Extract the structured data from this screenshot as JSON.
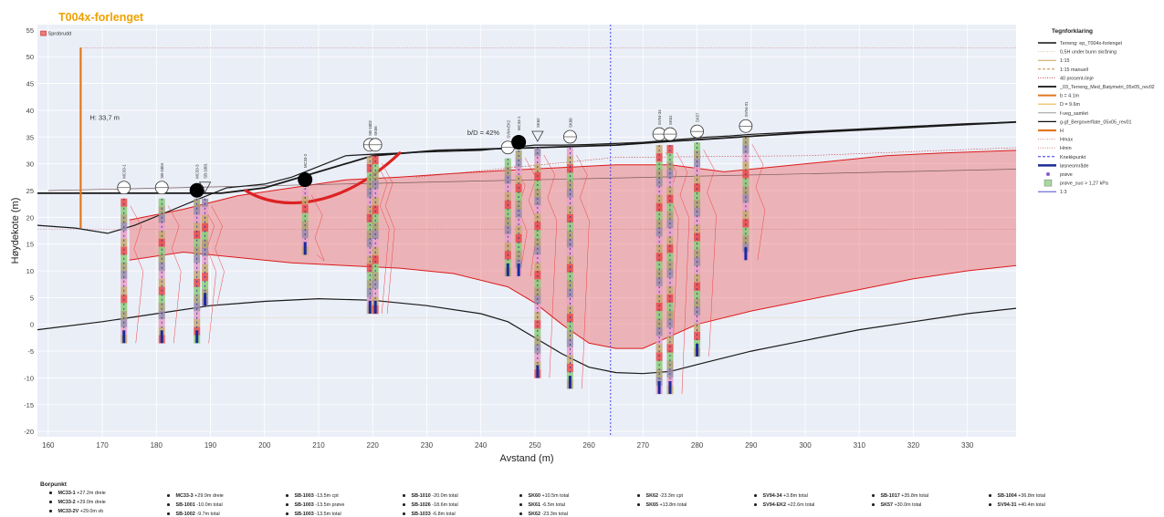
{
  "colors": {
    "title": "#f0a000",
    "plot_bg": "#eaeef7",
    "terrain": "#1a1a1a",
    "slip_fill": "#ee6a6a",
    "slip_line": "#dd1a1a",
    "orange_bar": "#e07820",
    "knekk": "#3333ee"
  },
  "chart_data": {
    "type": "line",
    "title": "T004x-forlenget",
    "tag_label": "Sprobrudd",
    "xlabel": "Avstand (m)",
    "ylabel": "Høydekote (m)",
    "xlim": [
      158,
      339
    ],
    "ylim": [
      -21,
      56
    ],
    "xticks": [
      "160",
      "170",
      "180",
      "190",
      "200",
      "210",
      "220",
      "230",
      "240",
      "250",
      "260",
      "270",
      "280",
      "290",
      "300",
      "310",
      "320",
      "330"
    ],
    "yticks": [
      "55",
      "50",
      "45",
      "40",
      "35",
      "30",
      "25",
      "20",
      "15",
      "10",
      "5",
      "0",
      "-5",
      "-10",
      "-15",
      "-20"
    ],
    "annotations": {
      "h_label": "H: 33,7 m",
      "bd_label": "b/D = 42%"
    },
    "series": [
      {
        "name": "Terreng: ep_T004x-forlenget",
        "points": [
          [
            158,
            18.5
          ],
          [
            165,
            18
          ],
          [
            171,
            17
          ],
          [
            176,
            18.5
          ],
          [
            182,
            21
          ],
          [
            188,
            23.5
          ],
          [
            193,
            25.5
          ],
          [
            200,
            26.2
          ],
          [
            205,
            27.5
          ],
          [
            210,
            29.5
          ],
          [
            215,
            31.5
          ],
          [
            220,
            31.8
          ],
          [
            225,
            32
          ],
          [
            230,
            32.2
          ],
          [
            240,
            32.5
          ],
          [
            250,
            33.5
          ],
          [
            255,
            33.5
          ],
          [
            260,
            33.6
          ],
          [
            270,
            34
          ],
          [
            276,
            34.5
          ],
          [
            282,
            35
          ],
          [
            286,
            35.2
          ],
          [
            290,
            35.5
          ],
          [
            300,
            36
          ],
          [
            310,
            36.5
          ],
          [
            320,
            37
          ],
          [
            330,
            37.5
          ],
          [
            339,
            37.8
          ]
        ]
      },
      {
        "name": "_03_Terreng_Med_Batymetri_05x05_rev02",
        "points": [
          [
            158,
            24.5
          ],
          [
            192,
            24.5
          ],
          [
            200,
            25.5
          ],
          [
            210,
            28.5
          ],
          [
            220,
            31.5
          ],
          [
            232,
            32.5
          ],
          [
            250,
            33
          ],
          [
            265,
            33.5
          ],
          [
            275,
            34.2
          ],
          [
            285,
            34.8
          ],
          [
            300,
            35.8
          ],
          [
            339,
            37.8
          ]
        ]
      },
      {
        "name": "g-gf_Bergoverflate_05x05_rev01",
        "points": [
          [
            158,
            -1
          ],
          [
            170,
            0.5
          ],
          [
            180,
            2
          ],
          [
            190,
            3.5
          ],
          [
            200,
            4.3
          ],
          [
            210,
            4.8
          ],
          [
            220,
            4.5
          ],
          [
            230,
            3.5
          ],
          [
            240,
            2
          ],
          [
            245,
            0.5
          ],
          [
            250,
            -2.5
          ],
          [
            255,
            -5.5
          ],
          [
            260,
            -8
          ],
          [
            265,
            -9
          ],
          [
            270,
            -9.2
          ],
          [
            275,
            -8.8
          ],
          [
            280,
            -7.5
          ],
          [
            290,
            -5
          ],
          [
            300,
            -3
          ],
          [
            310,
            -1
          ],
          [
            320,
            0.5
          ],
          [
            330,
            2
          ],
          [
            339,
            3
          ]
        ]
      },
      {
        "name": "slip_upper",
        "points": [
          [
            175,
            19.5
          ],
          [
            185,
            21.5
          ],
          [
            195,
            24
          ],
          [
            205,
            25.5
          ],
          [
            215,
            27
          ],
          [
            225,
            27.5
          ],
          [
            235,
            28.2
          ],
          [
            245,
            28.8
          ],
          [
            255,
            29.3
          ],
          [
            265,
            29.8
          ],
          [
            275,
            29.8
          ],
          [
            285,
            28.5
          ],
          [
            295,
            29.5
          ],
          [
            305,
            30.5
          ],
          [
            315,
            31.5
          ],
          [
            325,
            32
          ],
          [
            339,
            32.5
          ]
        ]
      },
      {
        "name": "slip_lower",
        "points": [
          [
            175,
            12
          ],
          [
            185,
            13.5
          ],
          [
            195,
            12.5
          ],
          [
            205,
            11.5
          ],
          [
            215,
            11
          ],
          [
            225,
            10.5
          ],
          [
            235,
            9.5
          ],
          [
            245,
            7
          ],
          [
            250,
            4
          ],
          [
            255,
            0
          ],
          [
            260,
            -3.5
          ],
          [
            265,
            -4.5
          ],
          [
            270,
            -4.5
          ],
          [
            280,
            0
          ],
          [
            290,
            2.5
          ],
          [
            300,
            4.5
          ],
          [
            310,
            6.5
          ],
          [
            320,
            8.5
          ],
          [
            330,
            10
          ],
          [
            339,
            11
          ]
        ]
      },
      {
        "name": "1:3",
        "points": [
          [
            160,
            25
          ],
          [
            339,
            29
          ]
        ]
      }
    ],
    "legend": {
      "title": "Tegnforklaring",
      "items": [
        {
          "label": "Terreng: ep_T004x-forlenget",
          "color": "#111111",
          "style": "solid",
          "width": 1.6
        },
        {
          "label": "0,5H under bunn skråning",
          "color": "#d8c8a0",
          "style": "dotted",
          "width": 1
        },
        {
          "label": "1:15",
          "color": "#c6a050",
          "style": "solid",
          "width": 1
        },
        {
          "label": "1:15 manuell",
          "color": "#c08a40",
          "style": "dashed",
          "width": 1
        },
        {
          "label": "40 prosent-linje",
          "color": "#c04040",
          "style": "dotted",
          "width": 1
        },
        {
          "label": "_03_Terreng_Med_Batymetri_05x05_rev02",
          "color": "#111111",
          "style": "solid",
          "width": 1.8
        },
        {
          "label": "b = 4.1m",
          "color": "#e07820",
          "style": "solid",
          "width": 2
        },
        {
          "label": "D = 9.6m",
          "color": "#e8b850",
          "style": "solid",
          "width": 1.2
        },
        {
          "label": "f-veg_samlet",
          "color": "#999999",
          "style": "solid",
          "width": 1
        },
        {
          "label": "g-gf_Bergoverflate_05x05_rev01",
          "color": "#111111",
          "style": "solid",
          "width": 1.2
        },
        {
          "label": "H",
          "color": "#e07820",
          "style": "solid",
          "width": 2.2
        },
        {
          "label": "Hmax",
          "color": "#cc8888",
          "style": "dotted",
          "width": 1
        },
        {
          "label": "Hmin",
          "color": "#cc8888",
          "style": "dotted",
          "width": 1
        },
        {
          "label": "Knekkpunkt",
          "color": "#3333ee",
          "style": "dashed",
          "width": 1
        },
        {
          "label": "løsneområde",
          "color": "#1a2a99",
          "style": "solid",
          "width": 2.5
        },
        {
          "label": "prøve",
          "color": "#8a5acc",
          "style": "dot",
          "width": 1
        },
        {
          "label": "prøve_suo > 1,27 kPa",
          "color": "#a8d8a0",
          "style": "box",
          "width": 1
        },
        {
          "label": "1:3",
          "color": "#4a4acc",
          "style": "solid",
          "width": 1
        }
      ]
    },
    "boreholes": [
      {
        "label": "MC33-1",
        "x": 174,
        "top": 23.5,
        "bottom": -3.5,
        "symbol": "circle"
      },
      {
        "label": "SB-1004",
        "x": 181,
        "top": 23.5,
        "bottom": -3.5,
        "symbol": "circle"
      },
      {
        "label": "MC33-3",
        "x": 187.5,
        "top": 23.5,
        "bottom": -3.5,
        "symbol": "dot"
      },
      {
        "label": "SB-1001",
        "x": 189,
        "top": 23.5,
        "bottom": 3.5,
        "symbol": "triangle"
      },
      {
        "label": "MC33-2",
        "x": 207.5,
        "top": 25.5,
        "bottom": 13,
        "symbol": "dot"
      },
      {
        "label": "SB-1002",
        "x": 219.5,
        "top": 31.5,
        "bottom": 2,
        "symbol": "circle"
      },
      {
        "label": "SK65",
        "x": 220.5,
        "top": 31.5,
        "bottom": 2,
        "symbol": "circle"
      },
      {
        "label": "SV94-EK2",
        "x": 245,
        "top": 31,
        "bottom": 9,
        "symbol": "circle"
      },
      {
        "label": "MC33-1",
        "x": 247,
        "top": 32.5,
        "bottom": 9,
        "symbol": "dot"
      },
      {
        "label": "SK62",
        "x": 250.5,
        "top": 33,
        "bottom": -10,
        "symbol": "triangle"
      },
      {
        "label": "SK60",
        "x": 256.5,
        "top": 33,
        "bottom": -12,
        "symbol": "circle"
      },
      {
        "label": "SV94-34",
        "x": 273,
        "top": 33.5,
        "bottom": -13,
        "symbol": "circle"
      },
      {
        "label": "SK61",
        "x": 275,
        "top": 33.5,
        "bottom": -13,
        "symbol": "circle"
      },
      {
        "label": "SK57",
        "x": 280,
        "top": 34,
        "bottom": -6,
        "symbol": "circle"
      },
      {
        "label": "SV94-31",
        "x": 289,
        "top": 35,
        "bottom": 12,
        "symbol": "circle"
      }
    ]
  },
  "borpunkt": {
    "title": "Borpunkt",
    "columns": [
      [
        {
          "id": "MC33-1",
          "desc": "+27.2m dreie"
        },
        {
          "id": "MC33-2",
          "desc": "+29.0m dreie"
        },
        {
          "id": "MC33-2V",
          "desc": "+29.0m vb"
        }
      ],
      [
        {
          "id": "MC33-3",
          "desc": "+29.9m dreie"
        },
        {
          "id": "SB-1001",
          "desc": "-10.0m total"
        },
        {
          "id": "SB-1002",
          "desc": "-9.7m total"
        }
      ],
      [
        {
          "id": "SB-1003",
          "desc": "-13.5m cpt"
        },
        {
          "id": "SB-1003",
          "desc": "-13.5m prøve"
        },
        {
          "id": "SB-1003",
          "desc": "-13.5m total"
        }
      ],
      [
        {
          "id": "SB-1010",
          "desc": "-20.0m total"
        },
        {
          "id": "SB-1026",
          "desc": "-18.6m total"
        },
        {
          "id": "SB-1033",
          "desc": "-6.8m total"
        }
      ],
      [
        {
          "id": "SK60",
          "desc": "+10.5m total"
        },
        {
          "id": "SK61",
          "desc": "-6.5m total"
        },
        {
          "id": "SK62",
          "desc": "-23.3m total"
        }
      ],
      [
        {
          "id": "SK62",
          "desc": "-23.3m cpt"
        },
        {
          "id": "SK65",
          "desc": "+13.8m total"
        }
      ],
      [
        {
          "id": "SV94-34",
          "desc": "+3.8m total"
        },
        {
          "id": "SV94-EK2",
          "desc": "+22.6m total"
        }
      ],
      [
        {
          "id": "SB-1017",
          "desc": "+35.8m total"
        },
        {
          "id": "SK57",
          "desc": "+30.0m total"
        }
      ],
      [
        {
          "id": "SB-1004",
          "desc": "+36.8m total"
        },
        {
          "id": "SV94-31",
          "desc": "+40.4m total"
        }
      ]
    ]
  }
}
